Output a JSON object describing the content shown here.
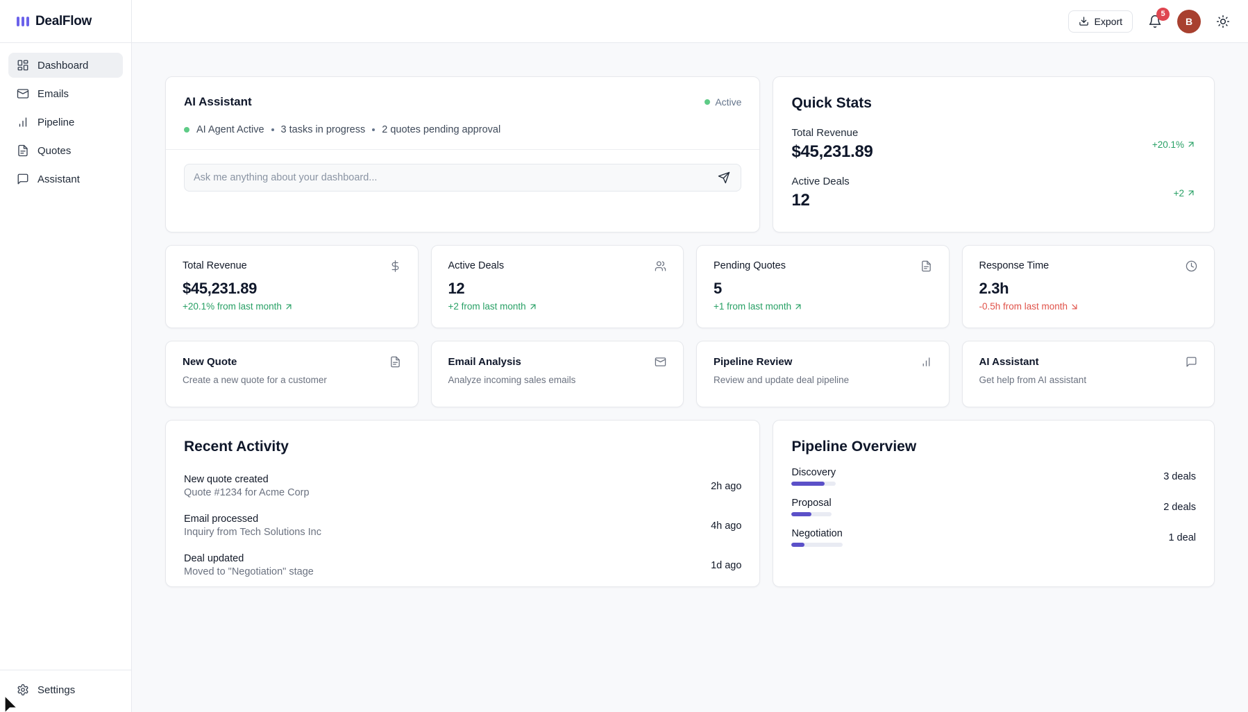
{
  "app": {
    "name": "DealFlow"
  },
  "header": {
    "export_label": "Export",
    "notification_count": "5",
    "avatar_initial": "B"
  },
  "sidebar": {
    "items": [
      {
        "label": "Dashboard",
        "icon": "dashboard-grid-icon",
        "active": true
      },
      {
        "label": "Emails",
        "icon": "mail-icon",
        "active": false
      },
      {
        "label": "Pipeline",
        "icon": "bar-chart-icon",
        "active": false
      },
      {
        "label": "Quotes",
        "icon": "file-text-icon",
        "active": false
      },
      {
        "label": "Assistant",
        "icon": "chat-bubble-icon",
        "active": false
      }
    ],
    "settings_label": "Settings",
    "settings_icon": "gear-icon"
  },
  "ai_assistant": {
    "title": "AI Assistant",
    "status_badge": "Active",
    "status_items": [
      "AI Agent Active",
      "3 tasks in progress",
      "2 quotes pending approval"
    ],
    "input_placeholder": "Ask me anything about your dashboard...",
    "send_icon": "send-icon"
  },
  "quick_stats": {
    "title": "Quick Stats",
    "rows": [
      {
        "label": "Total Revenue",
        "value": "$45,231.89",
        "delta": "+20.1%",
        "direction": "up"
      },
      {
        "label": "Active Deals",
        "value": "12",
        "delta": "+2",
        "direction": "up"
      }
    ]
  },
  "stat_cards": [
    {
      "label": "Total Revenue",
      "value": "$45,231.89",
      "change": "+20.1% from last month",
      "direction": "up",
      "icon": "dollar-icon"
    },
    {
      "label": "Active Deals",
      "value": "12",
      "change": "+2 from last month",
      "direction": "up",
      "icon": "users-icon"
    },
    {
      "label": "Pending Quotes",
      "value": "5",
      "change": "+1 from last month",
      "direction": "up",
      "icon": "file-text-icon"
    },
    {
      "label": "Response Time",
      "value": "2.3h",
      "change": "-0.5h from last month",
      "direction": "down",
      "icon": "clock-icon"
    }
  ],
  "action_cards": [
    {
      "title": "New Quote",
      "description": "Create a new quote for a customer",
      "icon": "file-text-icon"
    },
    {
      "title": "Email Analysis",
      "description": "Analyze incoming sales emails",
      "icon": "mail-icon"
    },
    {
      "title": "Pipeline Review",
      "description": "Review and update deal pipeline",
      "icon": "bar-chart-icon"
    },
    {
      "title": "AI Assistant",
      "description": "Get help from AI assistant",
      "icon": "chat-bubble-icon"
    }
  ],
  "recent_activity": {
    "title": "Recent Activity",
    "items": [
      {
        "title": "New quote created",
        "subtitle": "Quote #1234 for Acme Corp",
        "time": "2h ago"
      },
      {
        "title": "Email processed",
        "subtitle": "Inquiry from Tech Solutions Inc",
        "time": "4h ago"
      },
      {
        "title": "Deal updated",
        "subtitle": "Moved to \"Negotiation\" stage",
        "time": "1d ago"
      }
    ]
  },
  "pipeline_overview": {
    "title": "Pipeline Overview",
    "stages": [
      {
        "label": "Discovery",
        "deals": "3 deals",
        "percent": 75
      },
      {
        "label": "Proposal",
        "deals": "2 deals",
        "percent": 50
      },
      {
        "label": "Negotiation",
        "deals": "1 deal",
        "percent": 25
      }
    ]
  },
  "colors": {
    "accent": "#5b50c8",
    "logo_indigo": "#6b62ea",
    "positive_green": "#28a065",
    "negative_red": "#e05249",
    "status_green": "#5ecb86",
    "notification_badge": "#df4650",
    "avatar_bg": "#a8402f"
  }
}
